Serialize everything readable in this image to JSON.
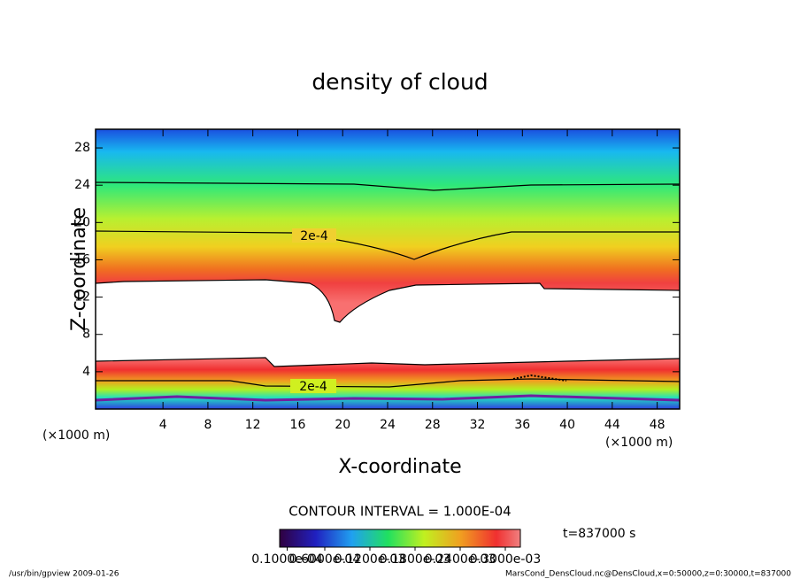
{
  "chart_data": {
    "type": "contour",
    "title": "density of cloud",
    "xlabel": "X-coordinate",
    "ylabel": "Z-coordinate",
    "x_unit_left": "(×1000 m)",
    "x_unit_right": "(×1000 m)",
    "xlim": [
      -2,
      50
    ],
    "xticks": [
      4,
      8,
      12,
      16,
      20,
      24,
      28,
      32,
      36,
      40,
      44,
      48
    ],
    "ylim": [
      0,
      30
    ],
    "yticks": [
      4,
      8,
      12,
      16,
      20,
      24,
      28
    ],
    "contour_labels": [
      "2e-4",
      "2e-4"
    ],
    "contour_interval": "CONTOUR INTERVAL = 1.000E-04",
    "time_label": "t=837000 s",
    "colorbar_ticks": [
      {
        "value": 1e-05,
        "label": "0.1000e-04"
      },
      {
        "value": 6e-05,
        "label": "0.6000e-04"
      },
      {
        "value": 0.00012,
        "label": "0.1200e-03"
      },
      {
        "value": 0.00018,
        "label": "0.1800e-03"
      },
      {
        "value": 0.00024,
        "label": "0.2400e-03"
      },
      {
        "value": 0.0003,
        "label": "0.3000e-03"
      }
    ],
    "clim": [
      0,
      0.00032
    ],
    "footer_left": "/usr/bin/gpview  2009-01-26",
    "footer_right": "MarsCond_DensCloud.nc@DensCloud,x=0:50000,z=0:30000,t=837000"
  }
}
